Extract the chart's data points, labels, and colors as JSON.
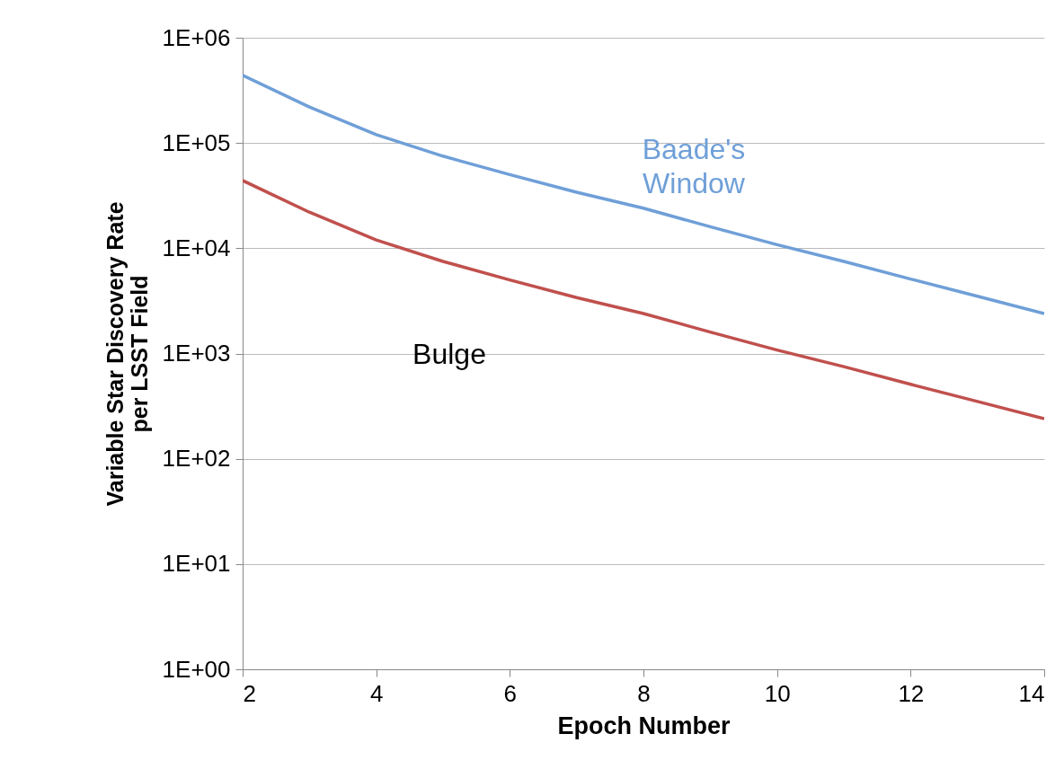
{
  "chart_data": {
    "type": "line",
    "xlabel": "Epoch Number",
    "ylabel": "Variable Star Discovery Rate\nper LSST Field",
    "x": [
      2,
      3,
      4,
      5,
      6,
      7,
      8,
      9,
      10,
      11,
      12,
      13,
      14
    ],
    "series": [
      {
        "name": "Baade's Window",
        "color": "#6f9fd8",
        "values": [
          440000,
          220000,
          120000,
          75000,
          50000,
          34000,
          24000,
          16000,
          10800,
          7500,
          5100,
          3500,
          2400
        ]
      },
      {
        "name": "Bulge",
        "color": "#c0504d",
        "values": [
          44000,
          22000,
          12000,
          7500,
          5000,
          3400,
          2400,
          1600,
          1080,
          750,
          510,
          350,
          240
        ]
      }
    ],
    "log": true,
    "xlim": [
      2,
      14
    ],
    "xticks": [
      2,
      4,
      6,
      8,
      10,
      12,
      14
    ],
    "ylim": [
      1,
      1000000
    ],
    "yticks": [
      {
        "value": 1,
        "label": "1E+00"
      },
      {
        "value": 10,
        "label": "1E+01"
      },
      {
        "value": 100,
        "label": "1E+02"
      },
      {
        "value": 1000,
        "label": "1E+03"
      },
      {
        "value": 10000,
        "label": "1E+04"
      },
      {
        "value": 100000,
        "label": "1E+05"
      },
      {
        "value": 1000000,
        "label": "1E+06"
      }
    ],
    "grid": "y",
    "legend": false,
    "marker": "none",
    "line_style": "solid"
  }
}
